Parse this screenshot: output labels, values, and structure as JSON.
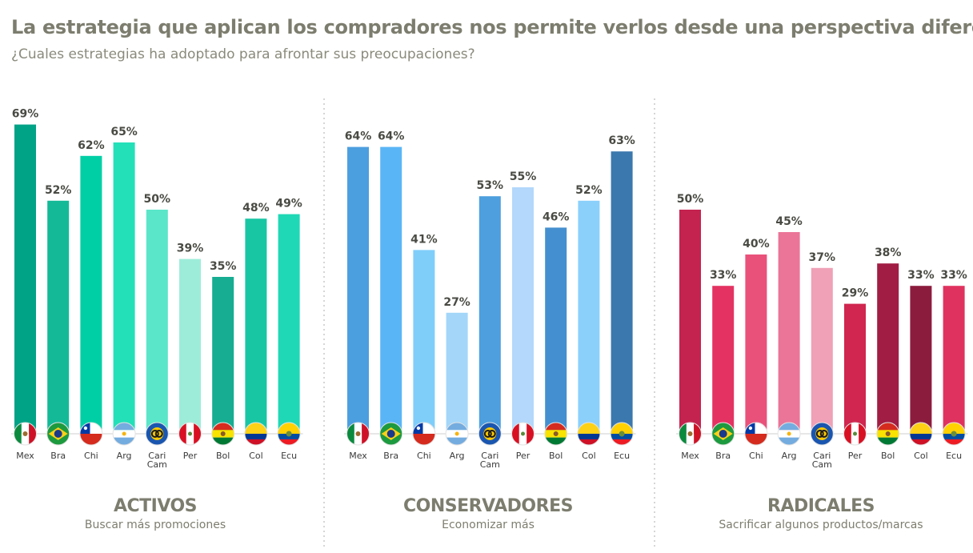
{
  "title": "La estrategia que aplican los compradores nos permite verlos desde una perspectiva diferente",
  "subtitle": "¿Cuales estrategias ha adoptado para afrontar sus preocupaciones?",
  "chart_data": [
    {
      "type": "bar",
      "title": "ACTIVOS",
      "subtitle": "Buscar más promociones",
      "categories": [
        "Mex",
        "Bra",
        "Chi",
        "Arg",
        "Cari Cam",
        "Per",
        "Bol",
        "Col",
        "Ecu"
      ],
      "values": [
        69,
        52,
        62,
        65,
        50,
        39,
        35,
        48,
        49
      ],
      "labels": [
        "69%",
        "52%",
        "62%",
        "65%",
        "50%",
        "39%",
        "35%",
        "48%",
        "49%"
      ],
      "colors": [
        "#00a386",
        "#14b998",
        "#00cfa6",
        "#23e0b8",
        "#5ae6c8",
        "#9decd9",
        "#17ad92",
        "#18c6a4",
        "#1fd8b5"
      ],
      "ylim": [
        0,
        100
      ]
    },
    {
      "type": "bar",
      "title": "CONSERVADORES",
      "subtitle": "Economizar más",
      "categories": [
        "Mex",
        "Bra",
        "Chi",
        "Arg",
        "Cari Cam",
        "Per",
        "Bol",
        "Col",
        "Ecu"
      ],
      "values": [
        64,
        64,
        41,
        27,
        53,
        55,
        46,
        52,
        63
      ],
      "labels": [
        "64%",
        "64%",
        "41%",
        "27%",
        "53%",
        "55%",
        "46%",
        "52%",
        "63%"
      ],
      "colors": [
        "#4c9fdf",
        "#5ab5f6",
        "#7fcefa",
        "#a3d6f9",
        "#4d9fde",
        "#b3d8fb",
        "#448fcf",
        "#8bd0fb",
        "#3b78ad"
      ],
      "ylim": [
        0,
        100
      ]
    },
    {
      "type": "bar",
      "title": "RADICALES",
      "subtitle": "Sacrificar algunos productos/marcas",
      "categories": [
        "Mex",
        "Bra",
        "Chi",
        "Arg",
        "Cari Cam",
        "Per",
        "Bol",
        "Col",
        "Ecu"
      ],
      "values": [
        50,
        33,
        40,
        45,
        37,
        29,
        38,
        33,
        33
      ],
      "labels": [
        "50%",
        "33%",
        "40%",
        "45%",
        "37%",
        "29%",
        "38%",
        "33%",
        "33%"
      ],
      "colors": [
        "#c4234f",
        "#e43262",
        "#e9517b",
        "#ea7598",
        "#f0a1b7",
        "#d0264f",
        "#a11d44",
        "#8c1c3e",
        "#e0325f"
      ],
      "ylim": [
        0,
        100
      ]
    }
  ],
  "icons": [
    "flag-mex-icon",
    "flag-bra-icon",
    "flag-chi-icon",
    "flag-arg-icon",
    "flag-caricam-icon",
    "flag-per-icon",
    "flag-bol-icon",
    "flag-col-icon",
    "flag-ecu-icon"
  ],
  "divider_color": "#c8c8c8",
  "text_color": "#7d7d6f"
}
